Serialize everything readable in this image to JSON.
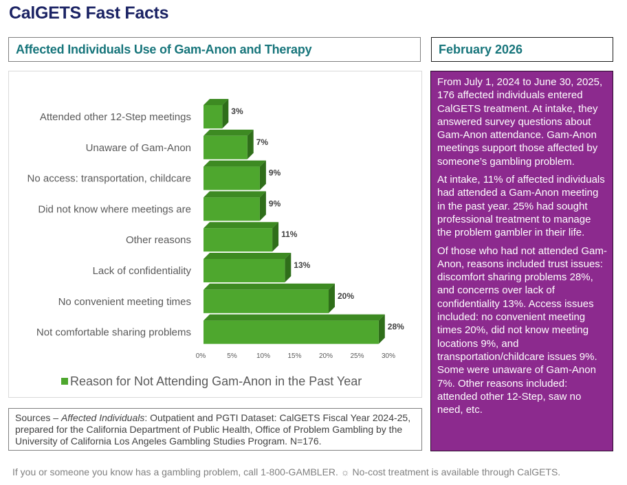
{
  "page_title": "CalGETS Fast Facts",
  "chart_header": "Affected Individuals Use of Gam-Anon and Therapy",
  "date_header": "February 2026",
  "info_paragraphs": [
    "From July 1, 2024 to June 30, 2025, 176 affected individuals entered CalGETS treatment. At intake, they answered survey questions about Gam-Anon attendance. Gam-Anon meetings support those affected by someone’s gambling problem.",
    "At intake, 11% of affected individuals had attended a Gam-Anon meeting in the past year. 25% had sought professional treatment to manage the problem gambler in their life.",
    "Of those who had not attended Gam-Anon, reasons included trust issues: discomfort sharing problems 28%, and concerns over lack of confidentiality 13%. Access issues included: no convenient meeting times 20%, did not know meeting locations 9%, and transportation/childcare issues 9%. Some were unaware of Gam-Anon 7%. Other reasons included: attended other 12-Step, saw no need, etc."
  ],
  "sources": {
    "prefix": "Sources – ",
    "italic": "Affected Individuals",
    "rest": ": Outpatient and PGTI Dataset: CalGETS Fiscal Year 2024-25, prepared for the California Department of Public Health, Office of Problem Gambling by the University of California Los Angeles Gambling Studies Program. N=176."
  },
  "footer": "If you or someone you know has a gambling problem, call 1-800-GAMBLER. ☼ No-cost treatment is available through CalGETS.",
  "colors": {
    "bar_front": "#4ea72e",
    "bar_top": "#3d8a22",
    "bar_side": "#2f6e1a",
    "title": "#1b2364",
    "header_teal": "#17757b",
    "info_bg": "#8c2a8e"
  },
  "chart_data": {
    "type": "bar",
    "orientation": "horizontal",
    "style": "3d",
    "categories": [
      "Attended other 12-Step meetings",
      "Unaware of Gam-Anon",
      "No access: transportation, childcare",
      "Did not know where meetings are",
      "Other reasons",
      "Lack of confidentiality",
      "No convenient meeting times",
      "Not comfortable sharing problems"
    ],
    "series": [
      {
        "name": "Reason for Not Attending Gam-Anon in the Past Year",
        "values": [
          3,
          7,
          9,
          9,
          11,
          13,
          20,
          28
        ],
        "labels": [
          "3%",
          "7%",
          "9%",
          "9%",
          "11%",
          "13%",
          "20%",
          "28%"
        ]
      }
    ],
    "xlim": [
      0,
      30
    ],
    "xticks": [
      0,
      5,
      10,
      15,
      20,
      25,
      30
    ],
    "xtick_labels": [
      "0%",
      "5%",
      "10%",
      "15%",
      "20%",
      "25%",
      "30%"
    ],
    "title": "",
    "xlabel": "",
    "ylabel": "",
    "grid": false,
    "legend_position": "bottom"
  }
}
